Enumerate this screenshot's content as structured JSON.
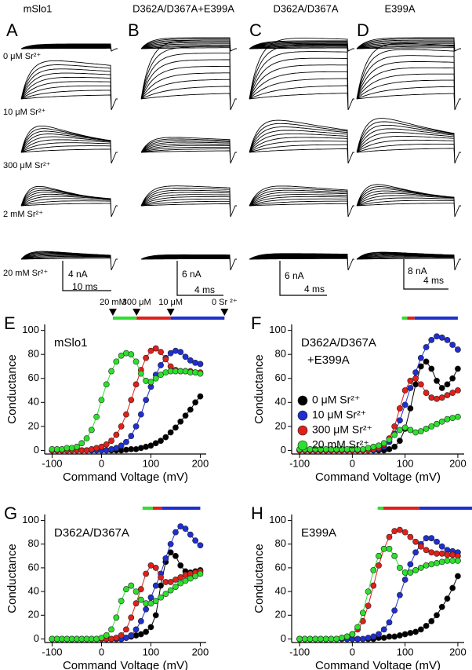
{
  "traces": {
    "columns": [
      {
        "title": "mSlo1",
        "letter": "A",
        "scale_current": "4 nA",
        "scale_time": "10 ms"
      },
      {
        "title": "D362A/D367A+E399A",
        "letter": "B",
        "scale_current": "6 nA",
        "scale_time": "4 ms"
      },
      {
        "title": "D362A/D367A",
        "letter": "C",
        "scale_current": "6 nA",
        "scale_time": "4 ms"
      },
      {
        "title": "E399A",
        "letter": "D",
        "scale_current": "8 nA",
        "scale_time": "4 ms"
      }
    ],
    "conditions": [
      "0 μM Sr²⁺",
      "10 μM Sr²⁺",
      "300 μM Sr²⁺",
      "2 mM Sr²⁺",
      "20 mM Sr²⁺"
    ]
  },
  "chart_data": [
    {
      "type": "scatter",
      "letter": "E",
      "name_lines": [
        "mSlo1"
      ],
      "x_label": "Command Voltage (mV)",
      "y_label": "Conductance",
      "xlim": [
        -115,
        212
      ],
      "ylim": [
        -3,
        105
      ],
      "xticks": [
        -100,
        0,
        100,
        200
      ],
      "yticks": [
        0,
        20,
        40,
        60,
        80,
        100
      ],
      "x": [
        -100,
        -90,
        -80,
        -70,
        -60,
        -50,
        -40,
        -30,
        -20,
        -10,
        0,
        10,
        20,
        30,
        40,
        50,
        60,
        70,
        80,
        90,
        100,
        110,
        120,
        130,
        140,
        150,
        160,
        170,
        180,
        190,
        200
      ],
      "series": [
        {
          "color": "#000000",
          "values": [
            0,
            0,
            0,
            0,
            0,
            0,
            0,
            0,
            0,
            0,
            0,
            0,
            0,
            0,
            0,
            0.5,
            1,
            1,
            2,
            3,
            4,
            6,
            8,
            11,
            15,
            19,
            24,
            29,
            34,
            40,
            45
          ]
        },
        {
          "color": "#1f2fd0",
          "values": [
            0,
            0,
            0,
            0,
            0,
            0,
            0,
            0,
            0,
            0,
            0,
            0,
            1,
            2,
            4,
            7,
            12,
            20,
            30,
            42,
            53,
            63,
            71,
            77,
            81,
            83,
            82,
            78,
            75,
            73,
            72
          ]
        },
        {
          "color": "#e0201a",
          "values": [
            0,
            0,
            0,
            0,
            0,
            0,
            0,
            0,
            1,
            2,
            3,
            5,
            8,
            13,
            20,
            30,
            42,
            55,
            67,
            77,
            83,
            85,
            82,
            76,
            70,
            67,
            66,
            66,
            66,
            65,
            65
          ]
        },
        {
          "color": "#2ee02e",
          "values": [
            1,
            1,
            1,
            2,
            2,
            3,
            6,
            10,
            17,
            28,
            42,
            55,
            66,
            74,
            79,
            81,
            80,
            74,
            64,
            58,
            57,
            60,
            63,
            65,
            66,
            66,
            66,
            66,
            65,
            65,
            64
          ]
        }
      ],
      "conc_bar": {
        "segments": [
          {
            "color": "#2ee02e",
            "start": 23,
            "end": 71
          },
          {
            "color": "#e0201a",
            "start": 71,
            "end": 140
          },
          {
            "color": "#1f2fd0",
            "start": 140,
            "end": 249
          }
        ],
        "markers": [
          {
            "value": 23,
            "label": "20 mM"
          },
          {
            "value": 71,
            "label": "300 μM"
          },
          {
            "value": 140,
            "label": "10 μM"
          },
          {
            "value": 249,
            "label": "0 Sr ²⁺"
          }
        ]
      }
    },
    {
      "type": "scatter",
      "letter": "F",
      "name_lines": [
        "D362A/D367A",
        "+E399A"
      ],
      "x_label": "Command Voltage (mV)",
      "y_label": "Conductance",
      "xlim": [
        -115,
        212
      ],
      "ylim": [
        -3,
        105
      ],
      "xticks": [
        -100,
        0,
        100,
        200
      ],
      "yticks": [
        0,
        20,
        40,
        60,
        80,
        100
      ],
      "x": [
        -100,
        -90,
        -80,
        -70,
        -60,
        -50,
        -40,
        -30,
        -20,
        -10,
        0,
        10,
        20,
        30,
        40,
        50,
        60,
        70,
        80,
        90,
        100,
        110,
        120,
        130,
        140,
        150,
        160,
        170,
        180,
        190,
        200
      ],
      "series": [
        {
          "name": "0 μM Sr²⁺",
          "color": "#000000",
          "values": [
            0,
            0,
            0,
            0,
            0,
            0,
            0,
            0,
            0,
            0,
            0,
            0,
            0,
            0,
            0,
            0,
            0,
            1,
            3,
            8,
            18,
            35,
            55,
            70,
            74,
            68,
            58,
            52,
            55,
            60,
            68
          ]
        },
        {
          "name": "10 μM Sr²⁺",
          "color": "#1f2fd0",
          "values": [
            0,
            0,
            0,
            0,
            0,
            0,
            0,
            0,
            0,
            0,
            0,
            0,
            0,
            0,
            0,
            1,
            3,
            7,
            14,
            25,
            38,
            52,
            65,
            77,
            86,
            92,
            95,
            94,
            92,
            88,
            84
          ]
        },
        {
          "name": "300 μM Sr²⁺",
          "color": "#e0201a",
          "values": [
            0,
            0,
            0,
            0,
            0,
            0,
            0,
            0,
            0,
            0,
            0,
            0,
            0,
            0,
            1,
            2,
            5,
            10,
            20,
            35,
            50,
            58,
            60,
            55,
            48,
            44,
            43,
            44,
            46,
            48,
            50
          ]
        },
        {
          "name": "20 mM Sr²⁺",
          "color": "#2ee02e",
          "values": [
            1,
            1,
            1,
            1,
            1,
            1,
            1,
            1,
            1,
            1,
            1,
            1,
            1,
            2,
            3,
            4,
            6,
            9,
            13,
            17,
            19,
            17,
            15,
            16,
            18,
            20,
            22,
            24,
            26,
            27,
            28
          ]
        }
      ],
      "conc_bar": {
        "segments": [
          {
            "color": "#2ee02e",
            "start": 94,
            "end": 104
          },
          {
            "color": "#e0201a",
            "start": 104,
            "end": 118
          },
          {
            "color": "#1f2fd0",
            "start": 118,
            "end": 200
          }
        ]
      }
    },
    {
      "type": "scatter",
      "letter": "G",
      "name_lines": [
        "D362A/D367A"
      ],
      "x_label": "Command Voltage (mV)",
      "y_label": "Conductance",
      "xlim": [
        -115,
        212
      ],
      "ylim": [
        -3,
        105
      ],
      "xticks": [
        -100,
        0,
        100,
        200
      ],
      "yticks": [
        0,
        20,
        40,
        60,
        80,
        100
      ],
      "x": [
        -100,
        -90,
        -80,
        -70,
        -60,
        -50,
        -40,
        -30,
        -20,
        -10,
        0,
        10,
        20,
        30,
        40,
        50,
        60,
        70,
        80,
        90,
        100,
        110,
        120,
        130,
        140,
        150,
        160,
        170,
        180,
        190,
        200
      ],
      "series": [
        {
          "color": "#000000",
          "values": [
            0,
            0,
            0,
            0,
            0,
            0,
            0,
            0,
            0,
            0,
            0,
            0,
            0,
            0,
            0,
            1,
            2,
            3,
            4,
            6,
            10,
            20,
            45,
            65,
            73,
            70,
            62,
            57,
            56,
            57,
            58
          ]
        },
        {
          "color": "#1f2fd0",
          "values": [
            0,
            0,
            0,
            0,
            0,
            0,
            0,
            0,
            0,
            0,
            0,
            0,
            0,
            0,
            0,
            1,
            3,
            8,
            15,
            25,
            35,
            45,
            55,
            68,
            80,
            90,
            95,
            93,
            88,
            83,
            79
          ]
        },
        {
          "color": "#e0201a",
          "values": [
            0,
            0,
            0,
            0,
            0,
            0,
            0,
            0,
            0,
            0,
            0,
            0,
            0,
            1,
            3,
            8,
            18,
            30,
            42,
            55,
            62,
            60,
            52,
            48,
            48,
            50,
            52,
            54,
            55,
            56,
            57
          ]
        },
        {
          "color": "#2ee02e",
          "values": [
            0,
            0,
            0,
            0,
            0,
            0,
            0,
            0,
            0,
            0,
            1,
            3,
            8,
            18,
            32,
            42,
            45,
            40,
            33,
            30,
            30,
            32,
            35,
            38,
            41,
            44,
            47,
            49,
            51,
            53,
            55
          ]
        }
      ],
      "conc_bar": {
        "segments": [
          {
            "color": "#2ee02e",
            "start": 83,
            "end": 104
          },
          {
            "color": "#e0201a",
            "start": 104,
            "end": 122
          },
          {
            "color": "#1f2fd0",
            "start": 122,
            "end": 200
          }
        ]
      }
    },
    {
      "type": "scatter",
      "letter": "H",
      "name_lines": [
        "E399A"
      ],
      "x_label": "Command Voltage (mV)",
      "y_label": "Conductance",
      "xlim": [
        -115,
        212
      ],
      "ylim": [
        -3,
        105
      ],
      "xticks": [
        -100,
        0,
        100,
        200
      ],
      "yticks": [
        0,
        20,
        40,
        60,
        80,
        100
      ],
      "x": [
        -100,
        -90,
        -80,
        -70,
        -60,
        -50,
        -40,
        -30,
        -20,
        -10,
        0,
        10,
        20,
        30,
        40,
        50,
        60,
        70,
        80,
        90,
        100,
        110,
        120,
        130,
        140,
        150,
        160,
        170,
        180,
        190,
        200
      ],
      "series": [
        {
          "color": "#000000",
          "values": [
            0,
            0,
            0,
            0,
            0,
            0,
            0,
            0,
            0,
            0,
            0,
            0,
            0,
            0,
            0,
            1,
            1,
            2,
            2,
            3,
            4,
            5,
            6,
            8,
            11,
            15,
            20,
            27,
            34,
            43,
            53
          ]
        },
        {
          "color": "#1f2fd0",
          "values": [
            0,
            0,
            0,
            0,
            0,
            0,
            0,
            0,
            0,
            0,
            0,
            0,
            0,
            1,
            2,
            4,
            8,
            14,
            24,
            37,
            50,
            63,
            73,
            80,
            85,
            85,
            82,
            78,
            75,
            74,
            73
          ]
        },
        {
          "color": "#e0201a",
          "values": [
            0,
            0,
            0,
            0,
            0,
            0,
            0,
            0,
            1,
            2,
            4,
            8,
            15,
            28,
            45,
            62,
            76,
            86,
            91,
            92,
            90,
            86,
            82,
            78,
            75,
            73,
            72,
            72,
            71,
            71,
            70
          ]
        },
        {
          "color": "#2ee02e",
          "values": [
            0,
            0,
            0,
            0,
            0,
            0,
            0,
            0,
            1,
            2,
            4,
            10,
            22,
            40,
            58,
            70,
            76,
            76,
            70,
            60,
            56,
            56,
            58,
            60,
            62,
            63,
            64,
            65,
            66,
            66,
            66
          ]
        }
      ],
      "conc_bar": {
        "segments": [
          {
            "color": "#2ee02e",
            "start": 48,
            "end": 59
          },
          {
            "color": "#e0201a",
            "start": 59,
            "end": 127
          },
          {
            "color": "#1f2fd0",
            "start": 127,
            "end": 229
          }
        ]
      }
    }
  ]
}
